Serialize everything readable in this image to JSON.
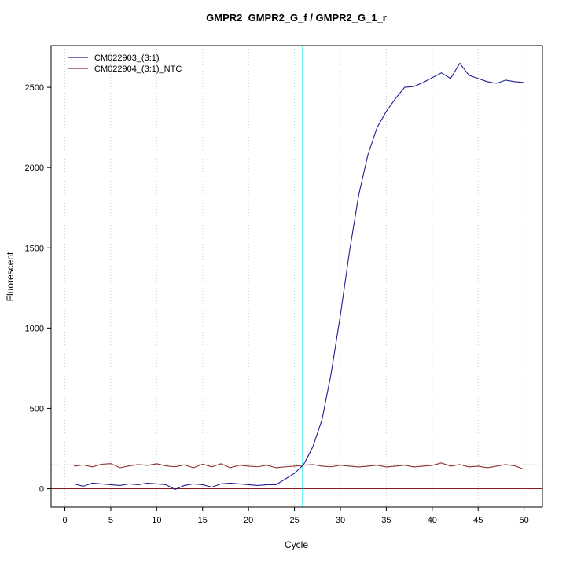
{
  "chart_data": {
    "type": "line",
    "title": "GMPR2  GMPR2_G_f / GMPR2_G_1_r",
    "xlabel": "Cycle",
    "ylabel": "Fluorescent",
    "xlim": [
      -1.5,
      52
    ],
    "ylim": [
      -115,
      2760
    ],
    "x_ticks": [
      0,
      5,
      10,
      15,
      20,
      25,
      30,
      35,
      40,
      45,
      50
    ],
    "y_ticks": [
      0,
      500,
      1000,
      1500,
      2000,
      2500
    ],
    "grid": "dotted-vertical-at-x-ticks",
    "legend_position": "top-left-inside",
    "x": [
      1,
      2,
      3,
      4,
      5,
      6,
      7,
      8,
      9,
      10,
      11,
      12,
      13,
      14,
      15,
      16,
      17,
      18,
      19,
      20,
      21,
      22,
      23,
      24,
      25,
      26,
      27,
      28,
      29,
      30,
      31,
      32,
      33,
      34,
      35,
      36,
      37,
      38,
      39,
      40,
      41,
      42,
      43,
      44,
      45,
      46,
      47,
      48,
      49,
      50
    ],
    "series": [
      {
        "name": "CM022903_(3:1)",
        "color": "#1f1f8f",
        "values": [
          30,
          15,
          35,
          30,
          25,
          20,
          30,
          25,
          35,
          30,
          25,
          -5,
          20,
          30,
          25,
          10,
          30,
          35,
          30,
          25,
          20,
          25,
          25,
          60,
          95,
          150,
          260,
          430,
          720,
          1080,
          1480,
          1830,
          2080,
          2250,
          2350,
          2430,
          2500,
          2505,
          2530,
          2560,
          2590,
          2555,
          2650,
          2575,
          2555,
          2535,
          2525,
          2545,
          2535,
          2530
        ]
      },
      {
        "name": "CM022904_(3:1)_NTC",
        "color": "#8b2e2e",
        "values": [
          140,
          148,
          135,
          152,
          156,
          130,
          142,
          150,
          145,
          155,
          142,
          136,
          148,
          130,
          152,
          136,
          155,
          130,
          146,
          140,
          136,
          146,
          130,
          136,
          140,
          146,
          150,
          140,
          136,
          146,
          140,
          135,
          140,
          146,
          135,
          140,
          146,
          135,
          140,
          145,
          160,
          140,
          150,
          135,
          140,
          130,
          140,
          150,
          142,
          120
        ]
      }
    ],
    "threshold_line": {
      "y": 150,
      "color": "#c8c8c8"
    },
    "ct_line": {
      "x": 25.9,
      "color": "#00e5e5"
    },
    "baseline": {
      "y": 0,
      "color": "#8b1a1a"
    },
    "grid_color": "#cccccc",
    "axis_color": "#000000"
  }
}
